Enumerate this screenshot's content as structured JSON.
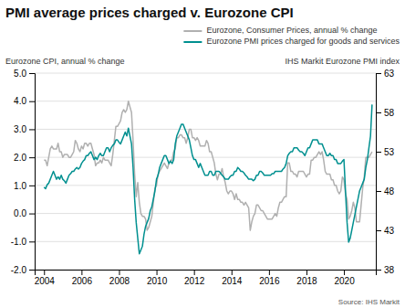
{
  "chart_data": {
    "type": "line",
    "title": "PMI average prices charged v. Eurozone CPI",
    "ylabel": "Eurozone CPI, annual % change",
    "y2label": "IHS Markit Eurozone PMI index",
    "annotations": [
      "Source: IHS Markit"
    ],
    "grid": true,
    "legend": "top-right",
    "xlim": [
      2003.5,
      2021.7
    ],
    "xticks": [
      2004,
      2006,
      2008,
      2010,
      2012,
      2014,
      2016,
      2018,
      2020
    ],
    "ylim": [
      -2.0,
      5.0
    ],
    "yticks": [
      {
        "value": -2.0,
        "label": "-2.0"
      },
      {
        "value": -1.0,
        "label": "-1.0"
      },
      {
        "value": 0.0,
        "label": "0.0"
      },
      {
        "value": 1.0,
        "label": "1.0"
      },
      {
        "value": 2.0,
        "label": "2.0"
      },
      {
        "value": 3.0,
        "label": "3.0"
      },
      {
        "value": 4.0,
        "label": "4.0"
      },
      {
        "value": 5.0,
        "label": "5.0"
      }
    ],
    "y2lim": [
      38,
      63
    ],
    "y2ticks": [
      38,
      43,
      48,
      53,
      58,
      63
    ],
    "x": [
      2004.0,
      2004.083,
      2004.167,
      2004.25,
      2004.333,
      2004.417,
      2004.5,
      2004.583,
      2004.667,
      2004.75,
      2004.833,
      2004.917,
      2005.0,
      2005.083,
      2005.167,
      2005.25,
      2005.333,
      2005.417,
      2005.5,
      2005.583,
      2005.667,
      2005.75,
      2005.833,
      2005.917,
      2006.0,
      2006.083,
      2006.167,
      2006.25,
      2006.333,
      2006.417,
      2006.5,
      2006.583,
      2006.667,
      2006.75,
      2006.833,
      2006.917,
      2007.0,
      2007.083,
      2007.167,
      2007.25,
      2007.333,
      2007.417,
      2007.5,
      2007.583,
      2007.667,
      2007.75,
      2007.833,
      2007.917,
      2008.0,
      2008.083,
      2008.167,
      2008.25,
      2008.333,
      2008.417,
      2008.5,
      2008.583,
      2008.667,
      2008.75,
      2008.833,
      2008.917,
      2009.0,
      2009.083,
      2009.167,
      2009.25,
      2009.333,
      2009.417,
      2009.5,
      2009.583,
      2009.667,
      2009.75,
      2009.833,
      2009.917,
      2010.0,
      2010.083,
      2010.167,
      2010.25,
      2010.333,
      2010.417,
      2010.5,
      2010.583,
      2010.667,
      2010.75,
      2010.833,
      2010.917,
      2011.0,
      2011.083,
      2011.167,
      2011.25,
      2011.333,
      2011.417,
      2011.5,
      2011.583,
      2011.667,
      2011.75,
      2011.833,
      2011.917,
      2012.0,
      2012.083,
      2012.167,
      2012.25,
      2012.333,
      2012.417,
      2012.5,
      2012.583,
      2012.667,
      2012.75,
      2012.833,
      2012.917,
      2013.0,
      2013.083,
      2013.167,
      2013.25,
      2013.333,
      2013.417,
      2013.5,
      2013.583,
      2013.667,
      2013.75,
      2013.833,
      2013.917,
      2014.0,
      2014.083,
      2014.167,
      2014.25,
      2014.333,
      2014.417,
      2014.5,
      2014.583,
      2014.667,
      2014.75,
      2014.833,
      2014.917,
      2015.0,
      2015.083,
      2015.167,
      2015.25,
      2015.333,
      2015.417,
      2015.5,
      2015.583,
      2015.667,
      2015.75,
      2015.833,
      2015.917,
      2016.0,
      2016.083,
      2016.167,
      2016.25,
      2016.333,
      2016.417,
      2016.5,
      2016.583,
      2016.667,
      2016.75,
      2016.833,
      2016.917,
      2017.0,
      2017.083,
      2017.167,
      2017.25,
      2017.333,
      2017.417,
      2017.5,
      2017.583,
      2017.667,
      2017.75,
      2017.833,
      2017.917,
      2018.0,
      2018.083,
      2018.167,
      2018.25,
      2018.333,
      2018.417,
      2018.5,
      2018.583,
      2018.667,
      2018.75,
      2018.833,
      2018.917,
      2019.0,
      2019.083,
      2019.167,
      2019.25,
      2019.333,
      2019.417,
      2019.5,
      2019.583,
      2019.667,
      2019.75,
      2019.833,
      2019.917,
      2020.0,
      2020.083,
      2020.167,
      2020.25,
      2020.333,
      2020.417,
      2020.5,
      2020.583,
      2020.667,
      2020.75,
      2020.833,
      2020.917,
      2021.0,
      2021.083,
      2021.167,
      2021.25,
      2021.333,
      2021.417,
      2021.5
    ],
    "series": [
      {
        "name": "Eurozone, Consumer Prices, annual % change",
        "color": "#b0b0b0",
        "values": [
          1.9,
          1.9,
          1.7,
          2.0,
          2.3,
          2.4,
          2.3,
          2.3,
          2.3,
          2.5,
          2.2,
          2.2,
          2.0,
          2.1,
          2.1,
          2.1,
          2.0,
          2.0,
          2.1,
          2.2,
          2.6,
          2.5,
          2.3,
          2.2,
          2.4,
          2.3,
          2.5,
          2.5,
          2.4,
          2.5,
          2.5,
          2.3,
          2.1,
          1.7,
          1.8,
          1.8,
          1.9,
          1.8,
          2.0,
          1.9,
          1.9,
          1.9,
          1.8,
          1.7,
          2.1,
          2.6,
          3.1,
          3.1,
          3.2,
          3.3,
          3.6,
          3.7,
          3.6,
          3.7,
          4.0,
          3.8,
          3.6,
          2.6,
          1.4,
          0.6,
          1.1,
          0.4,
          0.0,
          -0.1,
          -0.1,
          -0.2,
          -0.6,
          -0.5,
          -0.3,
          -0.1,
          0.4,
          0.9,
          1.0,
          1.4,
          1.5,
          1.6,
          1.7,
          1.8,
          1.7,
          1.6,
          1.8,
          1.9,
          1.9,
          2.2,
          2.3,
          2.7,
          2.7,
          2.8,
          2.8,
          2.7,
          2.7,
          2.5,
          2.7,
          3.0,
          3.0,
          2.7,
          2.7,
          2.6,
          2.7,
          2.6,
          2.4,
          2.4,
          2.4,
          2.4,
          2.6,
          2.5,
          2.2,
          2.2,
          2.0,
          1.8,
          1.4,
          1.2,
          1.4,
          1.4,
          1.6,
          1.3,
          1.1,
          0.8,
          0.7,
          0.8,
          0.8,
          0.7,
          0.5,
          0.7,
          0.5,
          0.5,
          0.4,
          0.4,
          0.3,
          0.4,
          0.3,
          0.2,
          -0.6,
          -0.3,
          -0.1,
          0.0,
          0.3,
          0.3,
          0.2,
          0.1,
          0.1,
          0.0,
          -0.1,
          -0.2,
          -0.2,
          -0.2,
          -0.2,
          -0.1,
          0.0,
          -0.1,
          0.2,
          0.4,
          0.4,
          0.5,
          0.6,
          0.6,
          1.8,
          1.8,
          1.5,
          1.5,
          1.4,
          1.4,
          1.3,
          1.5,
          1.5,
          1.5,
          1.5,
          1.4,
          1.3,
          1.4,
          1.4,
          1.9,
          1.9,
          2.0,
          2.0,
          2.1,
          2.2,
          2.1,
          2.2,
          1.9,
          1.5,
          1.4,
          1.4,
          1.4,
          1.2,
          1.2,
          1.0,
          1.0,
          0.8,
          0.7,
          0.8,
          1.3,
          1.2,
          0.7,
          0.5,
          -0.2,
          -0.1,
          0.1,
          0.4,
          0.2,
          -0.3,
          -0.3,
          -0.3,
          0.3,
          0.9,
          1.3,
          2.0,
          2.0,
          2.0,
          2.1,
          2.2
        ]
      },
      {
        "name": "Eurozone PMI prices charged for goods and services",
        "color": "#009090",
        "axis": "y2",
        "values": [
          48.5,
          48.3,
          48.8,
          49.0,
          49.5,
          50.0,
          50.5,
          50.0,
          49.5,
          49.8,
          49.5,
          50.0,
          49.5,
          49.3,
          49.0,
          49.5,
          50.0,
          50.2,
          50.5,
          50.5,
          50.8,
          51.0,
          50.8,
          51.0,
          51.5,
          51.8,
          52.0,
          52.5,
          52.5,
          52.8,
          53.0,
          52.5,
          52.0,
          52.3,
          52.0,
          52.5,
          52.8,
          52.5,
          52.5,
          53.0,
          53.5,
          53.5,
          53.0,
          53.5,
          53.8,
          54.0,
          54.5,
          54.5,
          54.2,
          54.0,
          54.5,
          55.0,
          55.5,
          55.0,
          56.0,
          55.0,
          54.0,
          51.0,
          47.0,
          44.0,
          42.0,
          40.0,
          40.5,
          41.0,
          42.5,
          43.5,
          44.0,
          44.5,
          45.5,
          46.0,
          47.0,
          48.0,
          49.5,
          50.0,
          51.0,
          51.5,
          52.0,
          52.5,
          52.5,
          52.0,
          51.5,
          51.8,
          51.5,
          52.0,
          54.0,
          55.0,
          55.5,
          56.0,
          56.5,
          56.5,
          56.0,
          55.5,
          55.0,
          54.5,
          53.5,
          52.5,
          52.0,
          52.0,
          51.5,
          51.0,
          51.5,
          51.0,
          50.5,
          50.0,
          50.0,
          50.0,
          50.5,
          50.5,
          50.0,
          50.0,
          50.5,
          50.5,
          50.5,
          50.3,
          50.0,
          49.8,
          49.5,
          49.5,
          49.5,
          49.8,
          50.0,
          50.0,
          50.5,
          50.5,
          51.0,
          50.8,
          50.5,
          50.5,
          50.3,
          50.0,
          49.8,
          49.5,
          49.5,
          49.5,
          49.3,
          49.5,
          50.0,
          50.0,
          50.5,
          50.5,
          50.3,
          50.0,
          50.0,
          50.0,
          50.0,
          50.0,
          50.2,
          50.2,
          50.5,
          50.5,
          50.5,
          50.5,
          50.5,
          50.8,
          51.0,
          51.5,
          52.5,
          52.8,
          53.0,
          53.0,
          53.5,
          53.5,
          53.5,
          53.2,
          53.0,
          53.0,
          52.8,
          52.5,
          53.0,
          53.5,
          53.5,
          54.0,
          54.5,
          54.5,
          54.5,
          54.5,
          54.0,
          54.0,
          54.0,
          53.5,
          53.0,
          52.5,
          52.5,
          52.8,
          52.5,
          52.5,
          52.0,
          52.0,
          51.5,
          51.5,
          51.5,
          51.8,
          52.0,
          48.0,
          44.0,
          41.5,
          42.0,
          43.0,
          44.0,
          45.0,
          46.0,
          47.0,
          48.0,
          48.5,
          49.0,
          49.5,
          51.0,
          52.0,
          53.5,
          55.0,
          59.0
        ]
      }
    ]
  }
}
